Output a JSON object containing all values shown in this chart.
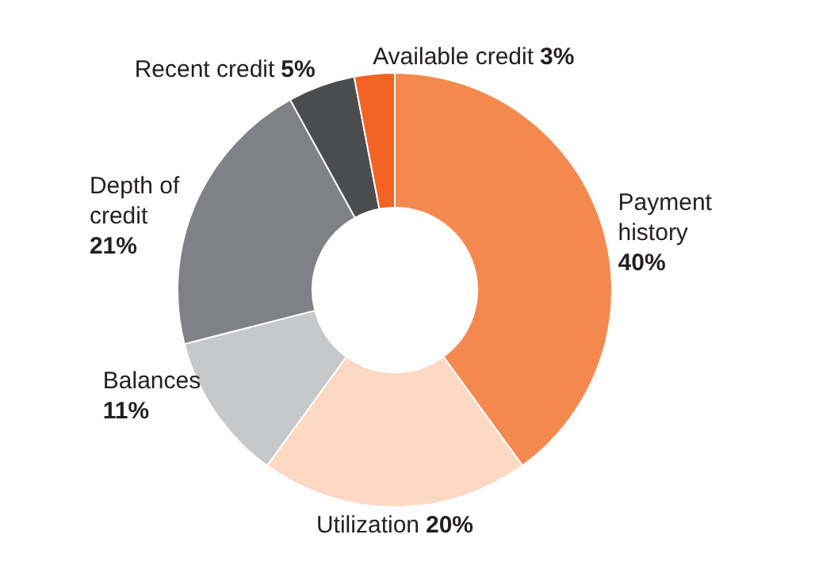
{
  "chart_data": {
    "type": "donut",
    "categories": [
      "Payment history",
      "Utilization",
      "Balances",
      "Depth of credit",
      "Recent credit",
      "Available credit"
    ],
    "values": [
      40,
      20,
      11,
      21,
      5,
      3
    ],
    "value_labels": [
      "40%",
      "20%",
      "11%",
      "21%",
      "5%",
      "3%"
    ],
    "colors": [
      "#f4894f",
      "#fdd9c4",
      "#c7c8ca",
      "#808184",
      "#4b4c4e",
      "#f26324"
    ]
  }
}
